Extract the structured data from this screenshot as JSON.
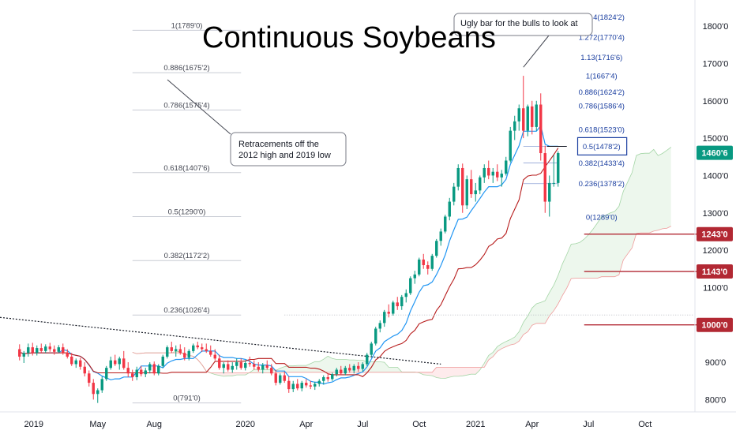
{
  "chart_data": {
    "type": "candlestick",
    "title": "Continuous Soybeans",
    "annotations": [
      {
        "text": [
          "Ugly bar for the bulls to look at"
        ]
      },
      {
        "text": [
          "Retracements off the",
          "2012 high and 2019 low"
        ]
      }
    ],
    "x_axis": {
      "ticks": [
        {
          "label": "2019",
          "pos": 0
        },
        {
          "label": "May",
          "pos": 18
        },
        {
          "label": "Aug",
          "pos": 31
        },
        {
          "label": "2020",
          "pos": 52
        },
        {
          "label": "Apr",
          "pos": 66
        },
        {
          "label": "Jul",
          "pos": 79
        },
        {
          "label": "Oct",
          "pos": 92
        },
        {
          "label": "2021",
          "pos": 105
        },
        {
          "label": "Apr",
          "pos": 118
        },
        {
          "label": "Jul",
          "pos": 131
        },
        {
          "label": "Oct",
          "pos": 144
        }
      ],
      "range": [
        -4.5,
        155.5
      ]
    },
    "y_axis": {
      "ticks": [
        {
          "label": "800'0",
          "value": 800
        },
        {
          "label": "900'0",
          "value": 900
        },
        {
          "label": "1000'0",
          "value": 1000
        },
        {
          "label": "1100'0",
          "value": 1100
        },
        {
          "label": "1200'0",
          "value": 1200
        },
        {
          "label": "1300'0",
          "value": 1300
        },
        {
          "label": "1400'0",
          "value": 1400
        },
        {
          "label": "1500'0",
          "value": 1500
        },
        {
          "label": "1600'0",
          "value": 1600
        },
        {
          "label": "1700'0",
          "value": 1700
        },
        {
          "label": "1800'0",
          "value": 1800
        }
      ],
      "range": [
        767,
        1870
      ]
    },
    "fib_left": [
      {
        "label": "1(1789'0)",
        "value": 1789
      },
      {
        "label": "0.886(1675'2)",
        "value": 1675.25
      },
      {
        "label": "0.786(1575'4)",
        "value": 1575.5
      },
      {
        "label": "0.618(1407'6)",
        "value": 1407.75
      },
      {
        "label": "0.5(1290'0)",
        "value": 1290
      },
      {
        "label": "0.382(1172'2)",
        "value": 1172.25
      },
      {
        "label": "0.236(1026'4)",
        "value": 1026.5
      },
      {
        "label": "0(791'0)",
        "value": 791
      }
    ],
    "fib_right": [
      {
        "label": "1.414(1824'2)",
        "value": 1824.25
      },
      {
        "label": "1.272(1770'4)",
        "value": 1770.5
      },
      {
        "label": "1.13(1716'6)",
        "value": 1716.75
      },
      {
        "label": "1(1667'4)",
        "value": 1667.5
      },
      {
        "label": "0.886(1624'2)",
        "value": 1624.25
      },
      {
        "label": "0.786(1586'4)",
        "value": 1586.5
      },
      {
        "label": "0.618(1523'0)",
        "value": 1523
      },
      {
        "label": "0.5(1478'2)",
        "value": 1478.25
      },
      {
        "label": "0.382(1433'4)",
        "value": 1433.5
      },
      {
        "label": "0.236(1378'2)",
        "value": 1378.25
      },
      {
        "label": "0(1289'0)",
        "value": 1289
      }
    ],
    "price_tags": [
      {
        "label": "1460'6",
        "value": 1460.75,
        "color": "#089981"
      },
      {
        "label": "1243'0",
        "value": 1243,
        "color": "#b22833"
      },
      {
        "label": "1143'0",
        "value": 1143,
        "color": "#b22833"
      },
      {
        "label": "1000'0",
        "value": 1000,
        "color": "#b22833"
      }
    ],
    "candles": [
      {
        "i": 0,
        "o": 935,
        "h": 948,
        "l": 905,
        "c": 915
      },
      {
        "i": 1,
        "o": 915,
        "h": 930,
        "l": 898,
        "c": 925
      },
      {
        "i": 2,
        "o": 925,
        "h": 950,
        "l": 915,
        "c": 940
      },
      {
        "i": 3,
        "o": 940,
        "h": 952,
        "l": 918,
        "c": 925
      },
      {
        "i": 4,
        "o": 925,
        "h": 945,
        "l": 918,
        "c": 938
      },
      {
        "i": 5,
        "o": 938,
        "h": 950,
        "l": 925,
        "c": 930
      },
      {
        "i": 6,
        "o": 930,
        "h": 948,
        "l": 925,
        "c": 942
      },
      {
        "i": 7,
        "o": 942,
        "h": 952,
        "l": 928,
        "c": 935
      },
      {
        "i": 8,
        "o": 935,
        "h": 945,
        "l": 920,
        "c": 928
      },
      {
        "i": 9,
        "o": 928,
        "h": 946,
        "l": 925,
        "c": 940
      },
      {
        "i": 10,
        "o": 940,
        "h": 950,
        "l": 920,
        "c": 925
      },
      {
        "i": 11,
        "o": 925,
        "h": 935,
        "l": 910,
        "c": 915
      },
      {
        "i": 12,
        "o": 915,
        "h": 925,
        "l": 890,
        "c": 895
      },
      {
        "i": 13,
        "o": 895,
        "h": 910,
        "l": 885,
        "c": 905
      },
      {
        "i": 14,
        "o": 905,
        "h": 912,
        "l": 880,
        "c": 888
      },
      {
        "i": 15,
        "o": 888,
        "h": 900,
        "l": 862,
        "c": 870
      },
      {
        "i": 16,
        "o": 870,
        "h": 878,
        "l": 835,
        "c": 845
      },
      {
        "i": 17,
        "o": 845,
        "h": 855,
        "l": 800,
        "c": 815
      },
      {
        "i": 18,
        "o": 815,
        "h": 830,
        "l": 791,
        "c": 825
      },
      {
        "i": 19,
        "o": 825,
        "h": 862,
        "l": 818,
        "c": 855
      },
      {
        "i": 20,
        "o": 855,
        "h": 890,
        "l": 850,
        "c": 885
      },
      {
        "i": 21,
        "o": 885,
        "h": 915,
        "l": 880,
        "c": 905
      },
      {
        "i": 22,
        "o": 905,
        "h": 920,
        "l": 890,
        "c": 895
      },
      {
        "i": 23,
        "o": 895,
        "h": 915,
        "l": 880,
        "c": 910
      },
      {
        "i": 24,
        "o": 910,
        "h": 930,
        "l": 880,
        "c": 885
      },
      {
        "i": 25,
        "o": 885,
        "h": 900,
        "l": 860,
        "c": 870
      },
      {
        "i": 26,
        "o": 870,
        "h": 880,
        "l": 850,
        "c": 860
      },
      {
        "i": 27,
        "o": 860,
        "h": 888,
        "l": 852,
        "c": 880
      },
      {
        "i": 28,
        "o": 880,
        "h": 890,
        "l": 862,
        "c": 868
      },
      {
        "i": 29,
        "o": 868,
        "h": 885,
        "l": 860,
        "c": 878
      },
      {
        "i": 30,
        "o": 878,
        "h": 900,
        "l": 870,
        "c": 895
      },
      {
        "i": 31,
        "o": 895,
        "h": 902,
        "l": 865,
        "c": 870
      },
      {
        "i": 32,
        "o": 870,
        "h": 895,
        "l": 865,
        "c": 890
      },
      {
        "i": 33,
        "o": 890,
        "h": 920,
        "l": 885,
        "c": 915
      },
      {
        "i": 34,
        "o": 915,
        "h": 945,
        "l": 910,
        "c": 940
      },
      {
        "i": 35,
        "o": 940,
        "h": 955,
        "l": 925,
        "c": 930
      },
      {
        "i": 36,
        "o": 930,
        "h": 945,
        "l": 915,
        "c": 935
      },
      {
        "i": 37,
        "o": 935,
        "h": 948,
        "l": 920,
        "c": 925
      },
      {
        "i": 38,
        "o": 925,
        "h": 940,
        "l": 905,
        "c": 912
      },
      {
        "i": 39,
        "o": 912,
        "h": 935,
        "l": 905,
        "c": 930
      },
      {
        "i": 40,
        "o": 930,
        "h": 950,
        "l": 925,
        "c": 945
      },
      {
        "i": 41,
        "o": 945,
        "h": 955,
        "l": 935,
        "c": 940
      },
      {
        "i": 42,
        "o": 940,
        "h": 950,
        "l": 928,
        "c": 935
      },
      {
        "i": 43,
        "o": 935,
        "h": 950,
        "l": 925,
        "c": 930
      },
      {
        "i": 44,
        "o": 930,
        "h": 945,
        "l": 915,
        "c": 920
      },
      {
        "i": 45,
        "o": 920,
        "h": 935,
        "l": 905,
        "c": 910
      },
      {
        "i": 46,
        "o": 910,
        "h": 920,
        "l": 880,
        "c": 885
      },
      {
        "i": 47,
        "o": 885,
        "h": 900,
        "l": 870,
        "c": 895
      },
      {
        "i": 48,
        "o": 895,
        "h": 905,
        "l": 875,
        "c": 880
      },
      {
        "i": 49,
        "o": 880,
        "h": 900,
        "l": 872,
        "c": 890
      },
      {
        "i": 50,
        "o": 890,
        "h": 910,
        "l": 880,
        "c": 900
      },
      {
        "i": 51,
        "o": 900,
        "h": 910,
        "l": 880,
        "c": 885
      },
      {
        "i": 52,
        "o": 885,
        "h": 905,
        "l": 878,
        "c": 898
      },
      {
        "i": 53,
        "o": 898,
        "h": 915,
        "l": 888,
        "c": 895
      },
      {
        "i": 54,
        "o": 895,
        "h": 905,
        "l": 880,
        "c": 888
      },
      {
        "i": 55,
        "o": 888,
        "h": 900,
        "l": 875,
        "c": 880
      },
      {
        "i": 56,
        "o": 880,
        "h": 898,
        "l": 870,
        "c": 892
      },
      {
        "i": 57,
        "o": 892,
        "h": 905,
        "l": 880,
        "c": 885
      },
      {
        "i": 58,
        "o": 885,
        "h": 895,
        "l": 865,
        "c": 870
      },
      {
        "i": 59,
        "o": 870,
        "h": 880,
        "l": 838,
        "c": 845
      },
      {
        "i": 60,
        "o": 845,
        "h": 870,
        "l": 840,
        "c": 865
      },
      {
        "i": 61,
        "o": 865,
        "h": 875,
        "l": 845,
        "c": 850
      },
      {
        "i": 62,
        "o": 850,
        "h": 862,
        "l": 818,
        "c": 828
      },
      {
        "i": 63,
        "o": 828,
        "h": 850,
        "l": 820,
        "c": 842
      },
      {
        "i": 64,
        "o": 842,
        "h": 855,
        "l": 825,
        "c": 830
      },
      {
        "i": 65,
        "o": 830,
        "h": 850,
        "l": 822,
        "c": 845
      },
      {
        "i": 66,
        "o": 845,
        "h": 855,
        "l": 832,
        "c": 838
      },
      {
        "i": 67,
        "o": 838,
        "h": 850,
        "l": 828,
        "c": 835
      },
      {
        "i": 68,
        "o": 835,
        "h": 848,
        "l": 826,
        "c": 842
      },
      {
        "i": 69,
        "o": 842,
        "h": 855,
        "l": 835,
        "c": 850
      },
      {
        "i": 70,
        "o": 850,
        "h": 865,
        "l": 840,
        "c": 860
      },
      {
        "i": 71,
        "o": 860,
        "h": 870,
        "l": 848,
        "c": 855
      },
      {
        "i": 72,
        "o": 855,
        "h": 872,
        "l": 850,
        "c": 868
      },
      {
        "i": 73,
        "o": 868,
        "h": 885,
        "l": 862,
        "c": 880
      },
      {
        "i": 74,
        "o": 880,
        "h": 890,
        "l": 865,
        "c": 870
      },
      {
        "i": 75,
        "o": 870,
        "h": 890,
        "l": 865,
        "c": 885
      },
      {
        "i": 76,
        "o": 885,
        "h": 895,
        "l": 872,
        "c": 878
      },
      {
        "i": 77,
        "o": 878,
        "h": 895,
        "l": 870,
        "c": 890
      },
      {
        "i": 78,
        "o": 890,
        "h": 900,
        "l": 875,
        "c": 882
      },
      {
        "i": 79,
        "o": 882,
        "h": 900,
        "l": 875,
        "c": 895
      },
      {
        "i": 80,
        "o": 895,
        "h": 925,
        "l": 890,
        "c": 920
      },
      {
        "i": 81,
        "o": 920,
        "h": 955,
        "l": 915,
        "c": 950
      },
      {
        "i": 82,
        "o": 950,
        "h": 995,
        "l": 945,
        "c": 990
      },
      {
        "i": 83,
        "o": 990,
        "h": 1012,
        "l": 980,
        "c": 1005
      },
      {
        "i": 84,
        "o": 1005,
        "h": 1040,
        "l": 995,
        "c": 1035
      },
      {
        "i": 85,
        "o": 1035,
        "h": 1055,
        "l": 1020,
        "c": 1030
      },
      {
        "i": 86,
        "o": 1030,
        "h": 1065,
        "l": 1025,
        "c": 1060
      },
      {
        "i": 87,
        "o": 1060,
        "h": 1075,
        "l": 1040,
        "c": 1050
      },
      {
        "i": 88,
        "o": 1050,
        "h": 1080,
        "l": 1040,
        "c": 1075
      },
      {
        "i": 89,
        "o": 1075,
        "h": 1095,
        "l": 1060,
        "c": 1085
      },
      {
        "i": 90,
        "o": 1085,
        "h": 1130,
        "l": 1080,
        "c": 1125
      },
      {
        "i": 91,
        "o": 1125,
        "h": 1145,
        "l": 1110,
        "c": 1135
      },
      {
        "i": 92,
        "o": 1135,
        "h": 1180,
        "l": 1130,
        "c": 1175
      },
      {
        "i": 93,
        "o": 1175,
        "h": 1190,
        "l": 1150,
        "c": 1160
      },
      {
        "i": 94,
        "o": 1160,
        "h": 1170,
        "l": 1135,
        "c": 1150
      },
      {
        "i": 95,
        "o": 1150,
        "h": 1190,
        "l": 1145,
        "c": 1185
      },
      {
        "i": 96,
        "o": 1185,
        "h": 1230,
        "l": 1180,
        "c": 1225
      },
      {
        "i": 97,
        "o": 1225,
        "h": 1258,
        "l": 1212,
        "c": 1250
      },
      {
        "i": 98,
        "o": 1250,
        "h": 1295,
        "l": 1245,
        "c": 1290
      },
      {
        "i": 99,
        "o": 1290,
        "h": 1340,
        "l": 1280,
        "c": 1330
      },
      {
        "i": 100,
        "o": 1330,
        "h": 1380,
        "l": 1320,
        "c": 1370
      },
      {
        "i": 101,
        "o": 1370,
        "h": 1430,
        "l": 1360,
        "c": 1420
      },
      {
        "i": 102,
        "o": 1420,
        "h": 1432,
        "l": 1300,
        "c": 1320
      },
      {
        "i": 103,
        "o": 1320,
        "h": 1400,
        "l": 1310,
        "c": 1390
      },
      {
        "i": 104,
        "o": 1390,
        "h": 1415,
        "l": 1340,
        "c": 1350
      },
      {
        "i": 105,
        "o": 1350,
        "h": 1380,
        "l": 1330,
        "c": 1360
      },
      {
        "i": 106,
        "o": 1360,
        "h": 1400,
        "l": 1350,
        "c": 1395
      },
      {
        "i": 107,
        "o": 1395,
        "h": 1430,
        "l": 1380,
        "c": 1420
      },
      {
        "i": 108,
        "o": 1420,
        "h": 1440,
        "l": 1390,
        "c": 1400
      },
      {
        "i": 109,
        "o": 1400,
        "h": 1420,
        "l": 1380,
        "c": 1410
      },
      {
        "i": 110,
        "o": 1410,
        "h": 1430,
        "l": 1385,
        "c": 1395
      },
      {
        "i": 111,
        "o": 1395,
        "h": 1415,
        "l": 1370,
        "c": 1405
      },
      {
        "i": 112,
        "o": 1405,
        "h": 1450,
        "l": 1400,
        "c": 1440
      },
      {
        "i": 113,
        "o": 1440,
        "h": 1530,
        "l": 1435,
        "c": 1520
      },
      {
        "i": 114,
        "o": 1520,
        "h": 1560,
        "l": 1495,
        "c": 1545
      },
      {
        "i": 115,
        "o": 1545,
        "h": 1590,
        "l": 1520,
        "c": 1580
      },
      {
        "i": 116,
        "o": 1580,
        "h": 1667,
        "l": 1500,
        "c": 1520
      },
      {
        "i": 117,
        "o": 1520,
        "h": 1590,
        "l": 1505,
        "c": 1585
      },
      {
        "i": 118,
        "o": 1585,
        "h": 1600,
        "l": 1510,
        "c": 1530
      },
      {
        "i": 119,
        "o": 1530,
        "h": 1600,
        "l": 1520,
        "c": 1590
      },
      {
        "i": 120,
        "o": 1590,
        "h": 1620,
        "l": 1440,
        "c": 1460
      },
      {
        "i": 121,
        "o": 1460,
        "h": 1480,
        "l": 1300,
        "c": 1330
      },
      {
        "i": 122,
        "o": 1330,
        "h": 1400,
        "l": 1290,
        "c": 1380
      },
      {
        "i": 123,
        "o": 1380,
        "h": 1455,
        "l": 1370,
        "c": 1380
      },
      {
        "i": 124,
        "o": 1380,
        "h": 1465,
        "l": 1370,
        "c": 1460
      }
    ]
  }
}
